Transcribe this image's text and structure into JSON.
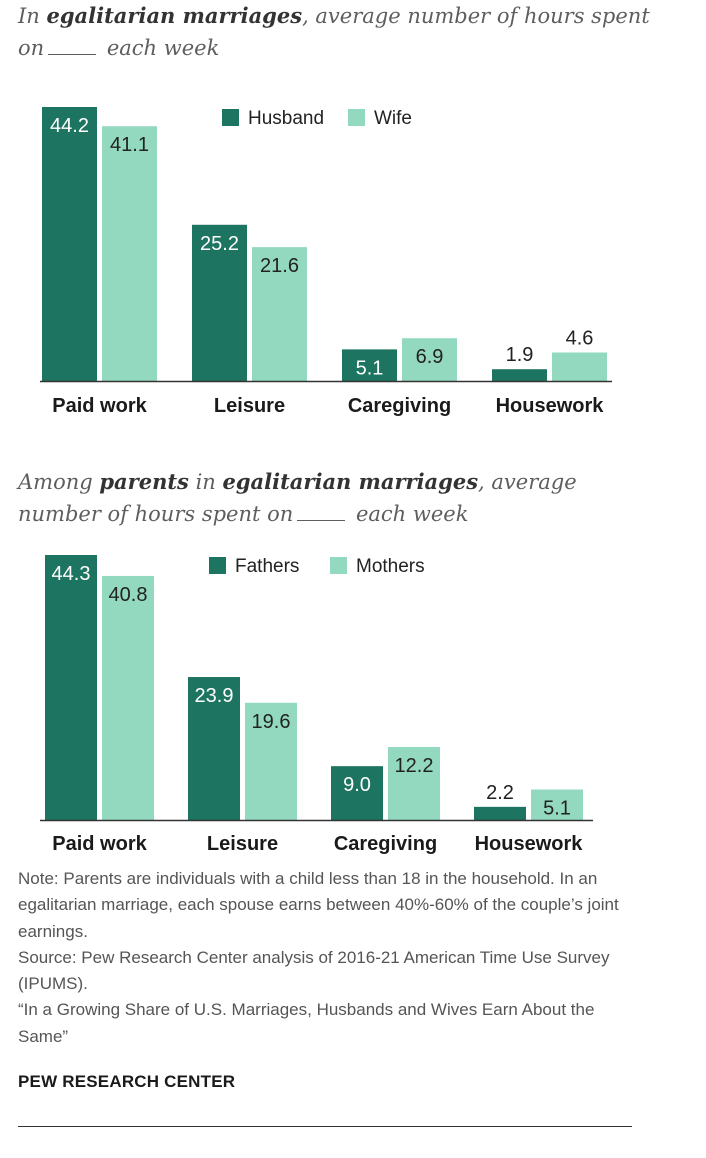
{
  "charts": [
    {
      "title_segments": [
        {
          "text": "In ",
          "bold": false
        },
        {
          "text": "egalitarian marriages",
          "bold": true
        },
        {
          "text": ", average number of hours spent on",
          "bold": false
        },
        {
          "blank": true
        },
        {
          "text": " each week",
          "bold": false
        }
      ]
    },
    {
      "title_segments": [
        {
          "text": "Among ",
          "bold": false
        },
        {
          "text": "parents",
          "bold": true
        },
        {
          "text": " in ",
          "bold": false
        },
        {
          "text": "egalitarian marriages",
          "bold": true
        },
        {
          "text": ", average number of hours spent on",
          "bold": false
        },
        {
          "blank": true
        },
        {
          "text": " each week",
          "bold": false
        }
      ]
    }
  ],
  "chart_data": [
    {
      "type": "bar",
      "title": "In egalitarian marriages, average number of hours spent on ___ each week",
      "categories": [
        "Paid work",
        "Leisure",
        "Caregiving",
        "Housework"
      ],
      "series": [
        {
          "name": "Husband",
          "values": [
            44.2,
            25.2,
            5.1,
            1.9
          ],
          "color": "#1d7460"
        },
        {
          "name": "Wife",
          "values": [
            41.1,
            21.6,
            6.9,
            4.6
          ],
          "color": "#93d9c0"
        }
      ],
      "value_labels": [
        [
          "44.2",
          "25.2",
          "5.1",
          "1.9"
        ],
        [
          "41.1",
          "21.6",
          "6.9",
          "4.6"
        ]
      ],
      "ylim": [
        0,
        44.2
      ],
      "legend": "top-center",
      "grid": false
    },
    {
      "type": "bar",
      "title": "Among parents in egalitarian marriages, average number of hours spent on ___ each week",
      "categories": [
        "Paid work",
        "Leisure",
        "Caregiving",
        "Housework"
      ],
      "series": [
        {
          "name": "Fathers",
          "values": [
            44.3,
            23.9,
            9.0,
            2.2
          ],
          "color": "#1d7460"
        },
        {
          "name": "Mothers",
          "values": [
            40.8,
            19.6,
            12.2,
            5.1
          ],
          "color": "#93d9c0"
        }
      ],
      "value_labels": [
        [
          "44.3",
          "23.9",
          "9.0",
          "2.2"
        ],
        [
          "40.8",
          "19.6",
          "12.2",
          "5.1"
        ]
      ],
      "ylim": [
        0,
        44.3
      ],
      "legend": "top-center",
      "grid": false
    }
  ],
  "notes": [
    "Note: Parents are individuals with a child less than 18 in the household. In an egalitarian marriage, each spouse earns between 40%-60% of the couple’s joint earnings.",
    "Source: Pew Research Center analysis of 2016-21 American Time Use Survey (IPUMS).",
    "“In a Growing Share of U.S. Marriages, Husbands and Wives Earn About the Same”"
  ],
  "brand": "PEW RESEARCH CENTER"
}
